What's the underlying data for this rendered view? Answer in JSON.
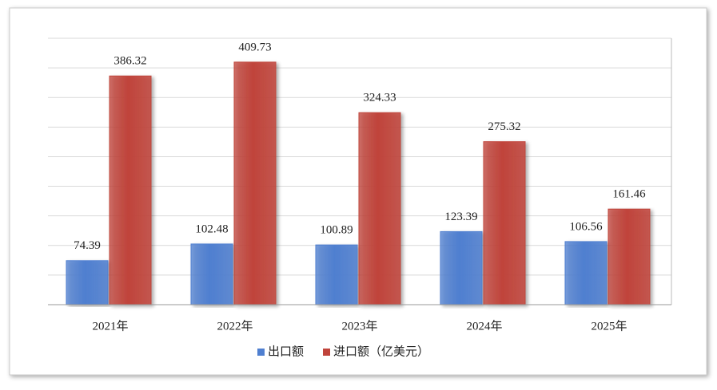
{
  "chart_data": {
    "type": "bar",
    "categories": [
      "2021年",
      "2022年",
      "2023年",
      "2024年",
      "2025年"
    ],
    "series": [
      {
        "name": "出口额",
        "color": "#4f7fd0",
        "values": [
          74.39,
          102.48,
          100.89,
          123.39,
          106.56
        ]
      },
      {
        "name": "进口额（亿美元）",
        "color": "#c0443b",
        "values": [
          386.32,
          409.73,
          324.33,
          275.32,
          161.46
        ]
      }
    ],
    "ylim": [
      0,
      450
    ],
    "yticks": [
      0,
      50,
      100,
      150,
      200,
      250,
      300,
      350,
      400,
      450
    ],
    "ytick_labels": false,
    "grid": true,
    "legend": "bottom"
  }
}
